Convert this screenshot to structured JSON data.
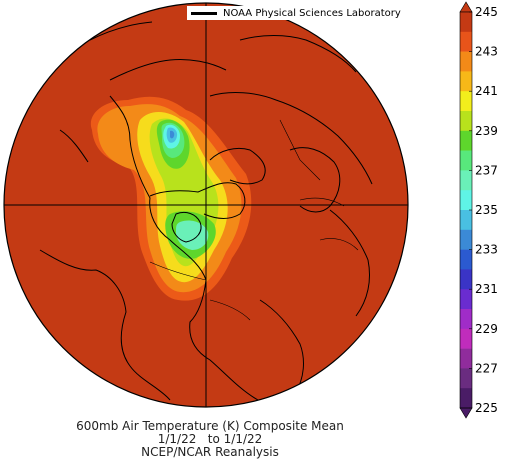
{
  "title": "600mb Air Temperature (K) Composite Mean",
  "date_range": "1/1/22   to 1/1/22",
  "source": "NCEP/NCAR Reanalysis",
  "lab_label": "NOAA Physical Sciences Laboratory",
  "colorbar": {
    "tick_labels": [
      "245",
      "243",
      "241",
      "239",
      "237",
      "235",
      "233",
      "231",
      "229",
      "227",
      "225"
    ],
    "colors": [
      "#c43a14",
      "#e8541a",
      "#f38a18",
      "#f7b818",
      "#f2ee1c",
      "#b8e21c",
      "#5ed62c",
      "#58e87c",
      "#6af0b8",
      "#5ff4e6",
      "#49c0e2",
      "#3b8ad6",
      "#2b5ad0",
      "#3a34c6",
      "#6a2cd0",
      "#a02cc8",
      "#c02cbc",
      "#902c9c",
      "#6a2c80",
      "#4a1c66"
    ]
  }
}
